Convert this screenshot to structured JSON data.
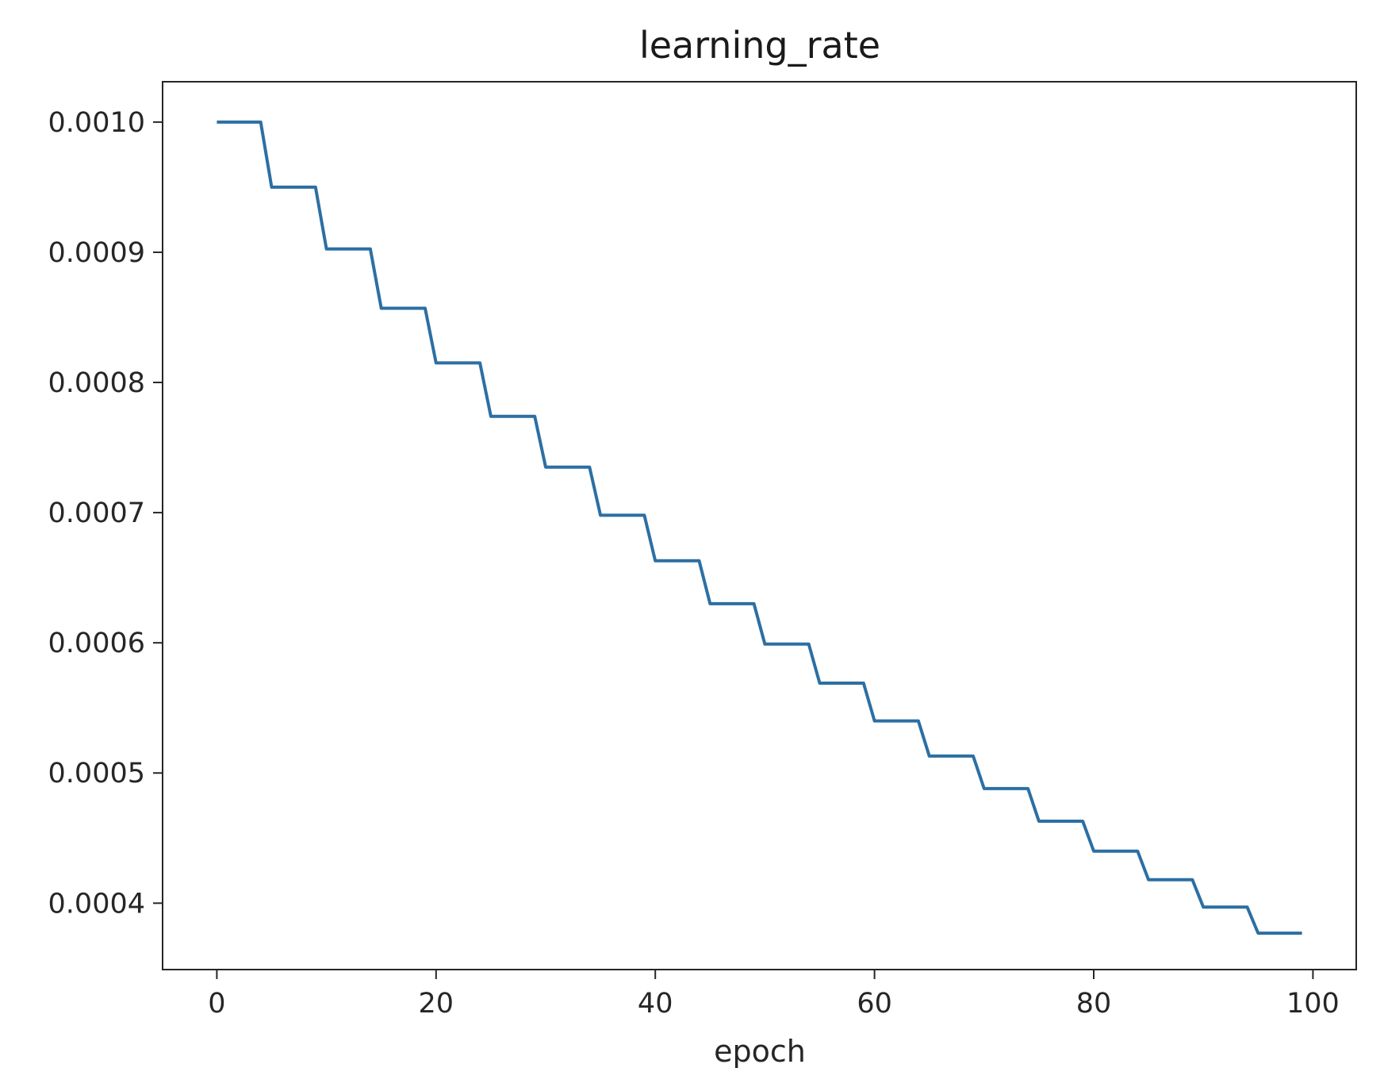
{
  "chart_data": {
    "type": "line",
    "title": "learning_rate",
    "xlabel": "epoch",
    "ylabel": "",
    "xlim": [
      -4.95,
      103.95
    ],
    "ylim": [
      0.000349,
      0.001031
    ],
    "grid": false,
    "legend": "none",
    "x_ticks": [
      0,
      20,
      40,
      60,
      80,
      100
    ],
    "x_tick_labels": [
      "0",
      "20",
      "40",
      "60",
      "80",
      "100"
    ],
    "y_ticks": [
      0.0004,
      0.0005,
      0.0006,
      0.0007,
      0.0008,
      0.0009,
      0.001
    ],
    "y_tick_labels": [
      "0.0004",
      "0.0005",
      "0.0006",
      "0.0007",
      "0.0008",
      "0.0009",
      "0.0010"
    ],
    "colors": {
      "line": "#2c6fa3",
      "axes": "#262626"
    },
    "series": [
      {
        "name": "",
        "step_size_epochs": 5,
        "x": [
          0,
          1,
          2,
          3,
          4,
          5,
          6,
          7,
          8,
          9,
          10,
          11,
          12,
          13,
          14,
          15,
          16,
          17,
          18,
          19,
          20,
          21,
          22,
          23,
          24,
          25,
          26,
          27,
          28,
          29,
          30,
          31,
          32,
          33,
          34,
          35,
          36,
          37,
          38,
          39,
          40,
          41,
          42,
          43,
          44,
          45,
          46,
          47,
          48,
          49,
          50,
          51,
          52,
          53,
          54,
          55,
          56,
          57,
          58,
          59,
          60,
          61,
          62,
          63,
          64,
          65,
          66,
          67,
          68,
          69,
          70,
          71,
          72,
          73,
          74,
          75,
          76,
          77,
          78,
          79,
          80,
          81,
          82,
          83,
          84,
          85,
          86,
          87,
          88,
          89,
          90,
          91,
          92,
          93,
          94,
          95,
          96,
          97,
          98,
          99
        ],
        "values": [
          0.001,
          0.001,
          0.001,
          0.001,
          0.001,
          0.00095,
          0.00095,
          0.00095,
          0.00095,
          0.00095,
          0.0009025,
          0.0009025,
          0.0009025,
          0.0009025,
          0.0009025,
          0.000857,
          0.000857,
          0.000857,
          0.000857,
          0.000857,
          0.000815,
          0.000815,
          0.000815,
          0.000815,
          0.000815,
          0.000774,
          0.000774,
          0.000774,
          0.000774,
          0.000774,
          0.000735,
          0.000735,
          0.000735,
          0.000735,
          0.000735,
          0.000698,
          0.000698,
          0.000698,
          0.000698,
          0.000698,
          0.000663,
          0.000663,
          0.000663,
          0.000663,
          0.000663,
          0.00063,
          0.00063,
          0.00063,
          0.00063,
          0.00063,
          0.000599,
          0.000599,
          0.000599,
          0.000599,
          0.000599,
          0.000569,
          0.000569,
          0.000569,
          0.000569,
          0.000569,
          0.00054,
          0.00054,
          0.00054,
          0.00054,
          0.00054,
          0.000513,
          0.000513,
          0.000513,
          0.000513,
          0.000513,
          0.000488,
          0.000488,
          0.000488,
          0.000488,
          0.000488,
          0.000463,
          0.000463,
          0.000463,
          0.000463,
          0.000463,
          0.00044,
          0.00044,
          0.00044,
          0.00044,
          0.00044,
          0.000418,
          0.000418,
          0.000418,
          0.000418,
          0.000418,
          0.000397,
          0.000397,
          0.000397,
          0.000397,
          0.000397,
          0.000377,
          0.000377,
          0.000377,
          0.000377,
          0.000377
        ]
      }
    ]
  }
}
